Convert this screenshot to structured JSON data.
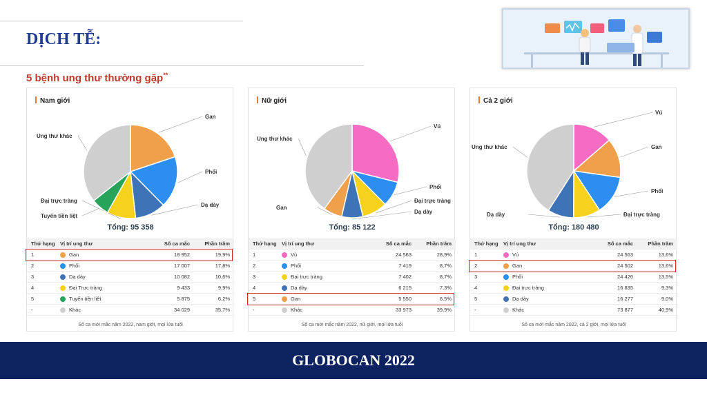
{
  "header": {
    "title": "DỊCH TỄ:",
    "subtitle": "5 bệnh ung thư thường gặp",
    "subtitle_mark": "**"
  },
  "footer": {
    "text": "GLOBOCAN 2022"
  },
  "table_headers": {
    "rank": "Thứ hạng",
    "site": "Vị trí ung thư",
    "cases": "Số ca mắc",
    "pct": "Phần trăm"
  },
  "colors": {
    "Gan": "#f0a04b",
    "Phổi": "#2b8ef0",
    "Dạ dày": "#3f73b8",
    "Đại trực tràng": "#f6d21c",
    "Tuyến tiền liệt": "#27a35a",
    "Vú": "#f56cc2",
    "Khác": "#cfcfcf"
  },
  "chart_data": [
    {
      "type": "pie",
      "title": "Nam giới",
      "total_label": "Tổng: 95 358",
      "slices": [
        {
          "label": "Gan",
          "value": 19.9
        },
        {
          "label": "Phổi",
          "value": 17.8
        },
        {
          "label": "Dạ dày",
          "value": 10.6
        },
        {
          "label": "Đại trực tràng",
          "value": 9.9
        },
        {
          "label": "Tuyến tiền liệt",
          "value": 6.2
        },
        {
          "label": "Ung thư khác",
          "value": 35.7
        }
      ],
      "table": {
        "rows": [
          {
            "rank": "1",
            "site": "Gan",
            "color_key": "Gan",
            "cases": "18 952",
            "pct": "19,9%"
          },
          {
            "rank": "2",
            "site": "Phổi",
            "color_key": "Phổi",
            "cases": "17 007",
            "pct": "17,8%"
          },
          {
            "rank": "3",
            "site": "Dạ dày",
            "color_key": "Dạ dày",
            "cases": "10 082",
            "pct": "10,6%"
          },
          {
            "rank": "4",
            "site": "Đại Trực tràng",
            "color_key": "Đại trực tràng",
            "cases": "9 433",
            "pct": "9,9%"
          },
          {
            "rank": "5",
            "site": "Tuyến tiền liệt",
            "color_key": "Tuyến tiền liệt",
            "cases": "5 875",
            "pct": "6,2%"
          },
          {
            "rank": "-",
            "site": "Khác",
            "color_key": "Khác",
            "cases": "34 029",
            "pct": "35,7%"
          }
        ],
        "highlight_row": 0,
        "note": "Số ca mới mắc năm 2022, nam giới, mọi lứa tuổi"
      }
    },
    {
      "type": "pie",
      "title": "Nữ giới",
      "total_label": "Tổng: 85 122",
      "slices": [
        {
          "label": "Vú",
          "value": 28.9
        },
        {
          "label": "Phổi",
          "value": 8.7
        },
        {
          "label": "Đại trực tràng",
          "value": 8.7
        },
        {
          "label": "Dạ dày",
          "value": 7.3
        },
        {
          "label": "Gan",
          "value": 6.5
        },
        {
          "label": "Ung thư khác",
          "value": 39.9
        }
      ],
      "table": {
        "rows": [
          {
            "rank": "1",
            "site": "Vú",
            "color_key": "Vú",
            "cases": "24 563",
            "pct": "28,9%"
          },
          {
            "rank": "2",
            "site": "Phổi",
            "color_key": "Phổi",
            "cases": "7 419",
            "pct": "8,7%"
          },
          {
            "rank": "3",
            "site": "Đại trực tràng",
            "color_key": "Đại trực tràng",
            "cases": "7 402",
            "pct": "8,7%"
          },
          {
            "rank": "4",
            "site": "Dạ dày",
            "color_key": "Dạ dày",
            "cases": "6 215",
            "pct": "7,3%"
          },
          {
            "rank": "5",
            "site": "Gan",
            "color_key": "Gan",
            "cases": "5 550",
            "pct": "6,5%"
          },
          {
            "rank": "-",
            "site": "Khác",
            "color_key": "Khác",
            "cases": "33 973",
            "pct": "39,9%"
          }
        ],
        "highlight_row": 4,
        "note": "Số ca mới mắc năm 2022, nữ giới, mọi lứa tuổi"
      }
    },
    {
      "type": "pie",
      "title": "Cả 2 giới",
      "total_label": "Tổng: 180 480",
      "slices": [
        {
          "label": "Vú",
          "value": 13.6
        },
        {
          "label": "Gan",
          "value": 13.6
        },
        {
          "label": "Phổi",
          "value": 13.5
        },
        {
          "label": "Đại trực tràng",
          "value": 9.3
        },
        {
          "label": "Dạ dày",
          "value": 9.0
        },
        {
          "label": "Ung thư khác",
          "value": 40.9
        }
      ],
      "table": {
        "rows": [
          {
            "rank": "1",
            "site": "Vú",
            "color_key": "Vú",
            "cases": "24 563",
            "pct": "13,6%"
          },
          {
            "rank": "2",
            "site": "Gan",
            "color_key": "Gan",
            "cases": "24 502",
            "pct": "13,6%"
          },
          {
            "rank": "3",
            "site": "Phổi",
            "color_key": "Phổi",
            "cases": "24 426",
            "pct": "13,5%"
          },
          {
            "rank": "4",
            "site": "Đại trực tràng",
            "color_key": "Đại trực tràng",
            "cases": "16 835",
            "pct": "9,3%"
          },
          {
            "rank": "5",
            "site": "Dạ dày",
            "color_key": "Dạ dày",
            "cases": "16 277",
            "pct": "9,0%"
          },
          {
            "rank": "-",
            "site": "Khác",
            "color_key": "Khác",
            "cases": "73 877",
            "pct": "40,9%"
          }
        ],
        "highlight_row": 1,
        "note": "Số ca mới mắc năm 2022, cả 2 giới, mọi lứa tuổi"
      }
    }
  ]
}
